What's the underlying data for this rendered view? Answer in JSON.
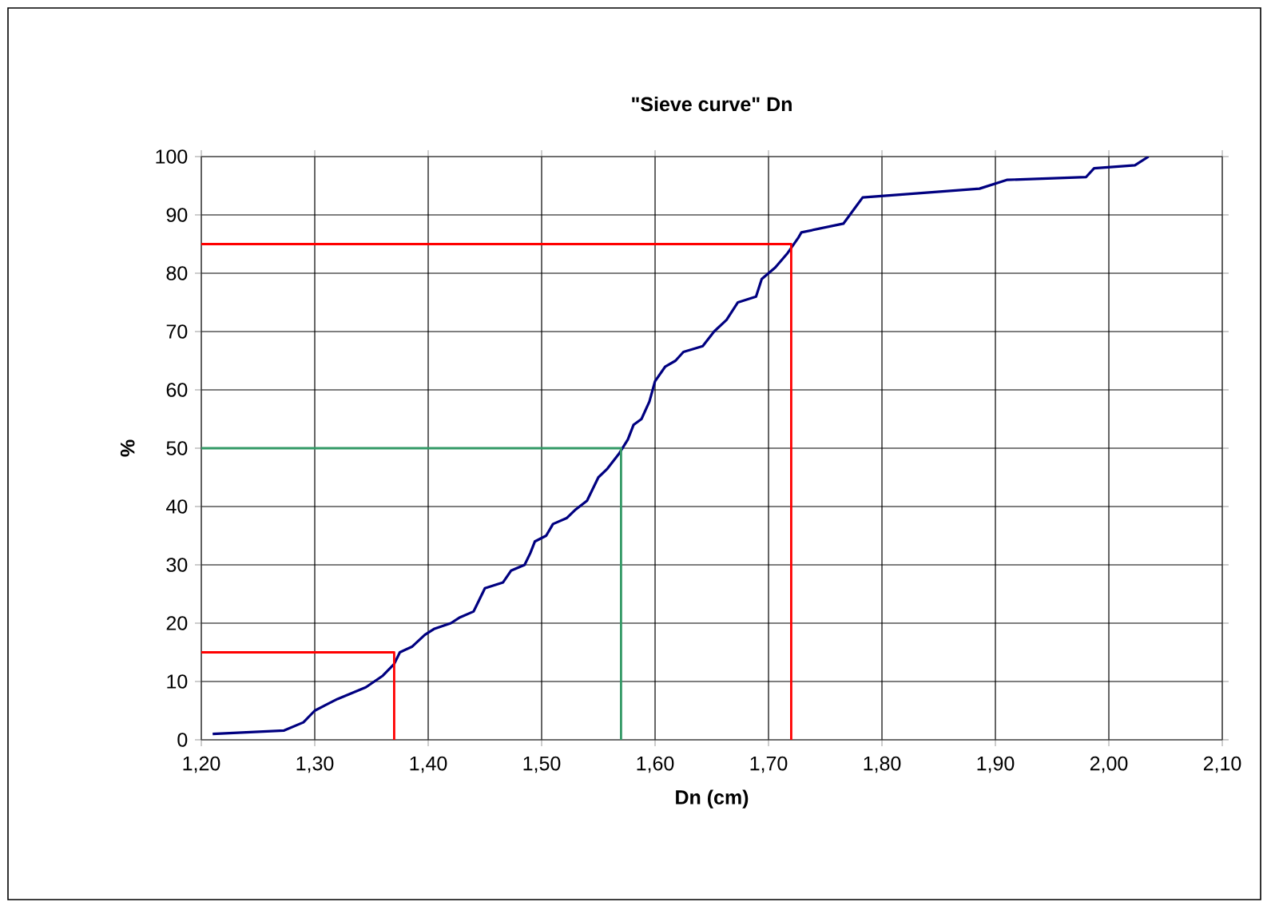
{
  "chart_data": {
    "type": "line",
    "title": "\"Sieve curve\" Dn",
    "xlabel": "Dn (cm)",
    "ylabel": "%",
    "xlim": [
      1.2,
      2.1
    ],
    "ylim": [
      0,
      100
    ],
    "xticks": [
      {
        "value": 1.2,
        "label": "1,20"
      },
      {
        "value": 1.3,
        "label": "1,30"
      },
      {
        "value": 1.4,
        "label": "1,40"
      },
      {
        "value": 1.5,
        "label": "1,50"
      },
      {
        "value": 1.6,
        "label": "1,60"
      },
      {
        "value": 1.7,
        "label": "1,70"
      },
      {
        "value": 1.8,
        "label": "1,80"
      },
      {
        "value": 1.9,
        "label": "1,90"
      },
      {
        "value": 2.0,
        "label": "2,00"
      },
      {
        "value": 2.1,
        "label": "2,10"
      }
    ],
    "yticks": [
      0,
      10,
      20,
      30,
      40,
      50,
      60,
      70,
      80,
      90,
      100
    ],
    "grid": true,
    "legend": false,
    "marker": "none",
    "line_style": "solid",
    "series": [
      {
        "color": "#000080",
        "x": [
          1.21,
          1.273,
          1.29,
          1.3,
          1.31,
          1.32,
          1.345,
          1.36,
          1.37,
          1.375,
          1.386,
          1.397,
          1.405,
          1.42,
          1.428,
          1.44,
          1.45,
          1.466,
          1.473,
          1.485,
          1.49,
          1.494,
          1.504,
          1.51,
          1.522,
          1.53,
          1.54,
          1.545,
          1.55,
          1.558,
          1.568,
          1.576,
          1.581,
          1.588,
          1.595,
          1.6,
          1.609,
          1.618,
          1.625,
          1.642,
          1.652,
          1.663,
          1.673,
          1.689,
          1.694,
          1.706,
          1.717,
          1.726,
          1.729,
          1.766,
          1.783,
          1.886,
          1.91,
          1.98,
          1.987,
          2.023,
          2.035
        ],
        "values": [
          1,
          1.6,
          3,
          5,
          6,
          7,
          9,
          11,
          13,
          15,
          16,
          18,
          19,
          20,
          21,
          22,
          26,
          27,
          29,
          30,
          32,
          34,
          35,
          37,
          38,
          39.5,
          41,
          43,
          45,
          46.5,
          49,
          51.5,
          54,
          55,
          58,
          61.5,
          64,
          65,
          66.5,
          67.5,
          70,
          72,
          75,
          76,
          79,
          81,
          83.5,
          86,
          87,
          88.5,
          93,
          94.5,
          96,
          96.5,
          98,
          98.5,
          100
        ]
      },
      {
        "color": "#ff0000",
        "x": [
          1.2,
          1.37,
          1.37
        ],
        "values": [
          15,
          15,
          0
        ]
      },
      {
        "color": "#339966",
        "x": [
          1.2,
          1.57,
          1.57
        ],
        "values": [
          50,
          50,
          0
        ]
      },
      {
        "color": "#ff0000",
        "x": [
          1.2,
          1.72,
          1.72
        ],
        "values": [
          85,
          85,
          0
        ]
      }
    ]
  }
}
